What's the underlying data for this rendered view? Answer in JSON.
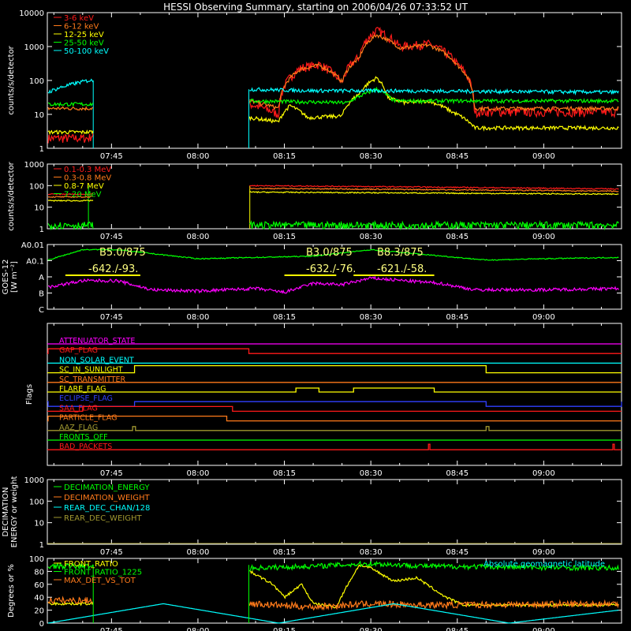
{
  "title": "HESSI Observing Summary, starting on 2006/04/26 07:33:52 UT",
  "time_axis": {
    "start": "07:33:52",
    "end": "09:13:30",
    "ticks": [
      "07:45",
      "08:00",
      "08:15",
      "08:30",
      "08:45",
      "09:00"
    ]
  },
  "colors": {
    "background": "#000000",
    "axis": "#ffffff",
    "red": "#ff1a1a",
    "orange": "#ff7a1a",
    "yellow": "#ffff00",
    "green": "#00ff00",
    "cyan": "#00ffff",
    "magenta": "#ff00ff",
    "blue": "#3040ff",
    "olive": "#a09830"
  },
  "chart_data": [
    {
      "type": "line",
      "name": "counts-panel",
      "ylabel": "counts/s/detector",
      "scale": "log",
      "ylim": [
        1,
        10000
      ],
      "yticks": [
        "1",
        "10",
        "100",
        "1000",
        "10000"
      ],
      "legend_placement": "top-left",
      "data_gap": [
        "07:41:50",
        "08:08:50"
      ],
      "series": [
        {
          "name": "3-6 keV",
          "color": "#ff1a1a",
          "x": [
            "07:34",
            "07:41",
            "08:09",
            "08:14",
            "08:18",
            "08:21",
            "08:25",
            "08:28",
            "08:31",
            "08:35",
            "08:40",
            "08:45",
            "08:48",
            "09:13"
          ],
          "values": [
            2,
            2,
            20,
            10,
            240,
            300,
            80,
            500,
            3000,
            1000,
            1200,
            300,
            12,
            12
          ]
        },
        {
          "name": "6-12 keV",
          "color": "#ff7a1a",
          "x": [
            "07:34",
            "07:41",
            "08:09",
            "08:14",
            "08:18",
            "08:21",
            "08:25",
            "08:28",
            "08:31",
            "08:35",
            "08:40",
            "08:45",
            "08:48",
            "09:13"
          ],
          "values": [
            15,
            15,
            25,
            15,
            220,
            280,
            90,
            450,
            2200,
            900,
            1100,
            280,
            15,
            15
          ]
        },
        {
          "name": "12-25 keV",
          "color": "#ffff00",
          "x": [
            "07:34",
            "07:41",
            "08:09",
            "08:14",
            "08:16",
            "08:19",
            "08:25",
            "08:28",
            "08:31",
            "08:33",
            "08:36",
            "08:40",
            "08:44",
            "08:48",
            "09:13"
          ],
          "values": [
            3,
            3,
            8,
            6,
            18,
            8,
            9,
            40,
            120,
            30,
            22,
            25,
            12,
            4,
            4
          ]
        },
        {
          "name": "25-50 keV",
          "color": "#00ff00",
          "x": [
            "07:34",
            "07:41",
            "08:09",
            "08:26",
            "08:29",
            "08:31",
            "08:34",
            "09:13"
          ],
          "values": [
            20,
            20,
            25,
            22,
            40,
            55,
            25,
            25
          ]
        },
        {
          "name": "50-100 keV",
          "color": "#00ffff",
          "x": [
            "07:34",
            "07:41",
            "08:09",
            "08:20",
            "08:31",
            "09:13"
          ],
          "values": [
            45,
            100,
            55,
            50,
            50,
            45
          ]
        }
      ]
    },
    {
      "type": "line",
      "name": "high-energy-panel",
      "ylabel": "counts/s/detector",
      "scale": "log",
      "ylim": [
        1,
        1000
      ],
      "yticks": [
        "1",
        "10",
        "100",
        "1000"
      ],
      "legend_placement": "top-left",
      "series": [
        {
          "name": "0.1-0.3 MeV",
          "color": "#ff1a1a",
          "x": [
            "07:34",
            "07:41",
            "08:09",
            "09:13"
          ],
          "values": [
            40,
            40,
            100,
            70
          ]
        },
        {
          "name": "0.3-0.8 MeV",
          "color": "#ff7a1a",
          "x": [
            "07:34",
            "07:41",
            "08:09",
            "09:13"
          ],
          "values": [
            30,
            30,
            75,
            55
          ]
        },
        {
          "name": "0.8-7 MeV",
          "color": "#ffff00",
          "x": [
            "07:34",
            "07:41",
            "08:09",
            "09:13"
          ],
          "values": [
            20,
            20,
            50,
            40
          ]
        },
        {
          "name": "7-20 MeV",
          "color": "#00ff00",
          "x": [
            "07:34",
            "07:41",
            "08:09",
            "09:13"
          ],
          "values": [
            1.5,
            1.5,
            1.5,
            1.5
          ]
        }
      ]
    },
    {
      "type": "line",
      "name": "goes-panel",
      "ylabel": "GOES-12",
      "ylabel2": "[W m⁻²]",
      "scale": "log",
      "yticks": [
        "C",
        "B",
        "A",
        "A0.1",
        "A0.01"
      ],
      "annotations": [
        {
          "text": "B5.0/875",
          "at": "07:44"
        },
        {
          "text": "-642./-93.",
          "at": "07:46"
        },
        {
          "text": "B3.0/875",
          "at": "08:21"
        },
        {
          "text": "-632./-76.",
          "at": "08:21"
        },
        {
          "text": "B8.3/875",
          "at": "08:33"
        },
        {
          "text": "-621./-58.",
          "at": "08:32"
        }
      ],
      "series": [
        {
          "name": "GOES low",
          "color": "#00ff00",
          "x": [
            "07:34",
            "07:40",
            "07:46",
            "08:00",
            "08:10",
            "08:20",
            "08:30",
            "08:40",
            "08:50",
            "09:00",
            "09:13"
          ],
          "values": [
            1.8,
            2.6,
            2.6,
            1.9,
            2.0,
            2.1,
            2.6,
            2.2,
            1.8,
            1.9,
            2.0
          ]
        },
        {
          "name": "GOES high",
          "color": "#ff00ff",
          "x": [
            "07:34",
            "07:40",
            "07:46",
            "07:52",
            "08:00",
            "08:10",
            "08:15",
            "08:20",
            "08:25",
            "08:30",
            "08:36",
            "08:42",
            "08:48",
            "09:00",
            "09:13"
          ],
          "values": [
            -0.3,
            0.2,
            0.2,
            -0.5,
            -0.6,
            -0.4,
            -0.7,
            0.0,
            -0.1,
            0.4,
            0.2,
            0.0,
            -0.5,
            -0.5,
            -0.4
          ]
        }
      ]
    },
    {
      "type": "table",
      "name": "flags-panel",
      "ylabel": "Flags",
      "flags": [
        {
          "label": "ATTENUATOR_STATE",
          "color": "#ff00ff"
        },
        {
          "label": "GAP_FLAG",
          "color": "#ff1a1a"
        },
        {
          "label": "NON_SOLAR_EVENT",
          "color": "#00ffff"
        },
        {
          "label": "SC_IN_SUNLIGHT",
          "color": "#ffff00"
        },
        {
          "label": "SC_TRANSMITTER",
          "color": "#ff7a1a"
        },
        {
          "label": "FLARE_FLAG",
          "color": "#ffff00"
        },
        {
          "label": "ECLIPSE_FLAG",
          "color": "#3040ff"
        },
        {
          "label": "SAA_FLAG",
          "color": "#ff1a1a"
        },
        {
          "label": "PARTICLE_FLAG",
          "color": "#ff7a1a"
        },
        {
          "label": "AAZ_FLAG",
          "color": "#a09830"
        },
        {
          "label": "FRONTS_OFF",
          "color": "#00ff00"
        },
        {
          "label": "BAD_PACKETS",
          "color": "#ff1a1a"
        }
      ]
    },
    {
      "type": "line",
      "name": "decimation-panel",
      "ylabel": "DECIMATION",
      "ylabel2": "ENERGY or weight",
      "scale": "log",
      "ylim": [
        1,
        1000
      ],
      "yticks": [
        "1",
        "10",
        "100",
        "1000"
      ],
      "legend_placement": "top-left",
      "series": [
        {
          "name": "DECIMATION_ENERGY",
          "color": "#00ff00"
        },
        {
          "name": "DECIMATION_WEIGHT",
          "color": "#ff7a1a"
        },
        {
          "name": "REAR_DEC_CHAN/128",
          "color": "#00ffff"
        },
        {
          "name": "REAR_DEC_WEIGHT",
          "color": "#a09830"
        }
      ]
    },
    {
      "type": "line",
      "name": "ratio-panel",
      "ylabel": "Degrees or %",
      "ylim": [
        0,
        100
      ],
      "yticks": [
        "0",
        "20",
        "40",
        "60",
        "80",
        "100"
      ],
      "legend_placement": "top-left",
      "annotation": "Absolute geomagnetic latitude",
      "series": [
        {
          "name": "FRONT_RATIO",
          "color": "#ffff00",
          "x": [
            "07:34",
            "07:41",
            "08:09",
            "08:13",
            "08:15",
            "08:18",
            "08:20",
            "08:24",
            "08:26",
            "08:28",
            "08:30",
            "08:34",
            "08:38",
            "08:43",
            "08:46",
            "09:13"
          ],
          "values": [
            30,
            30,
            80,
            60,
            40,
            60,
            30,
            25,
            60,
            90,
            85,
            65,
            70,
            40,
            28,
            28
          ]
        },
        {
          "name": "FRONT_RATIO_1225",
          "color": "#00ff00",
          "x": [
            "07:34",
            "07:41",
            "08:09",
            "08:20",
            "08:30",
            "08:40",
            "09:13"
          ],
          "values": [
            88,
            88,
            85,
            88,
            92,
            88,
            85
          ]
        },
        {
          "name": "MAX_DET_VS_TOT",
          "color": "#ff7a1a",
          "x": [
            "07:34",
            "07:41",
            "08:09",
            "08:20",
            "08:30",
            "08:40",
            "09:13"
          ],
          "values": [
            35,
            35,
            30,
            25,
            30,
            28,
            30
          ]
        },
        {
          "name": "Absolute geomagnetic latitude",
          "color": "#00ffff",
          "x": [
            "07:34",
            "07:54",
            "08:14",
            "08:34",
            "08:54",
            "09:13"
          ],
          "values": [
            0,
            30,
            0,
            30,
            0,
            20
          ]
        }
      ]
    }
  ]
}
